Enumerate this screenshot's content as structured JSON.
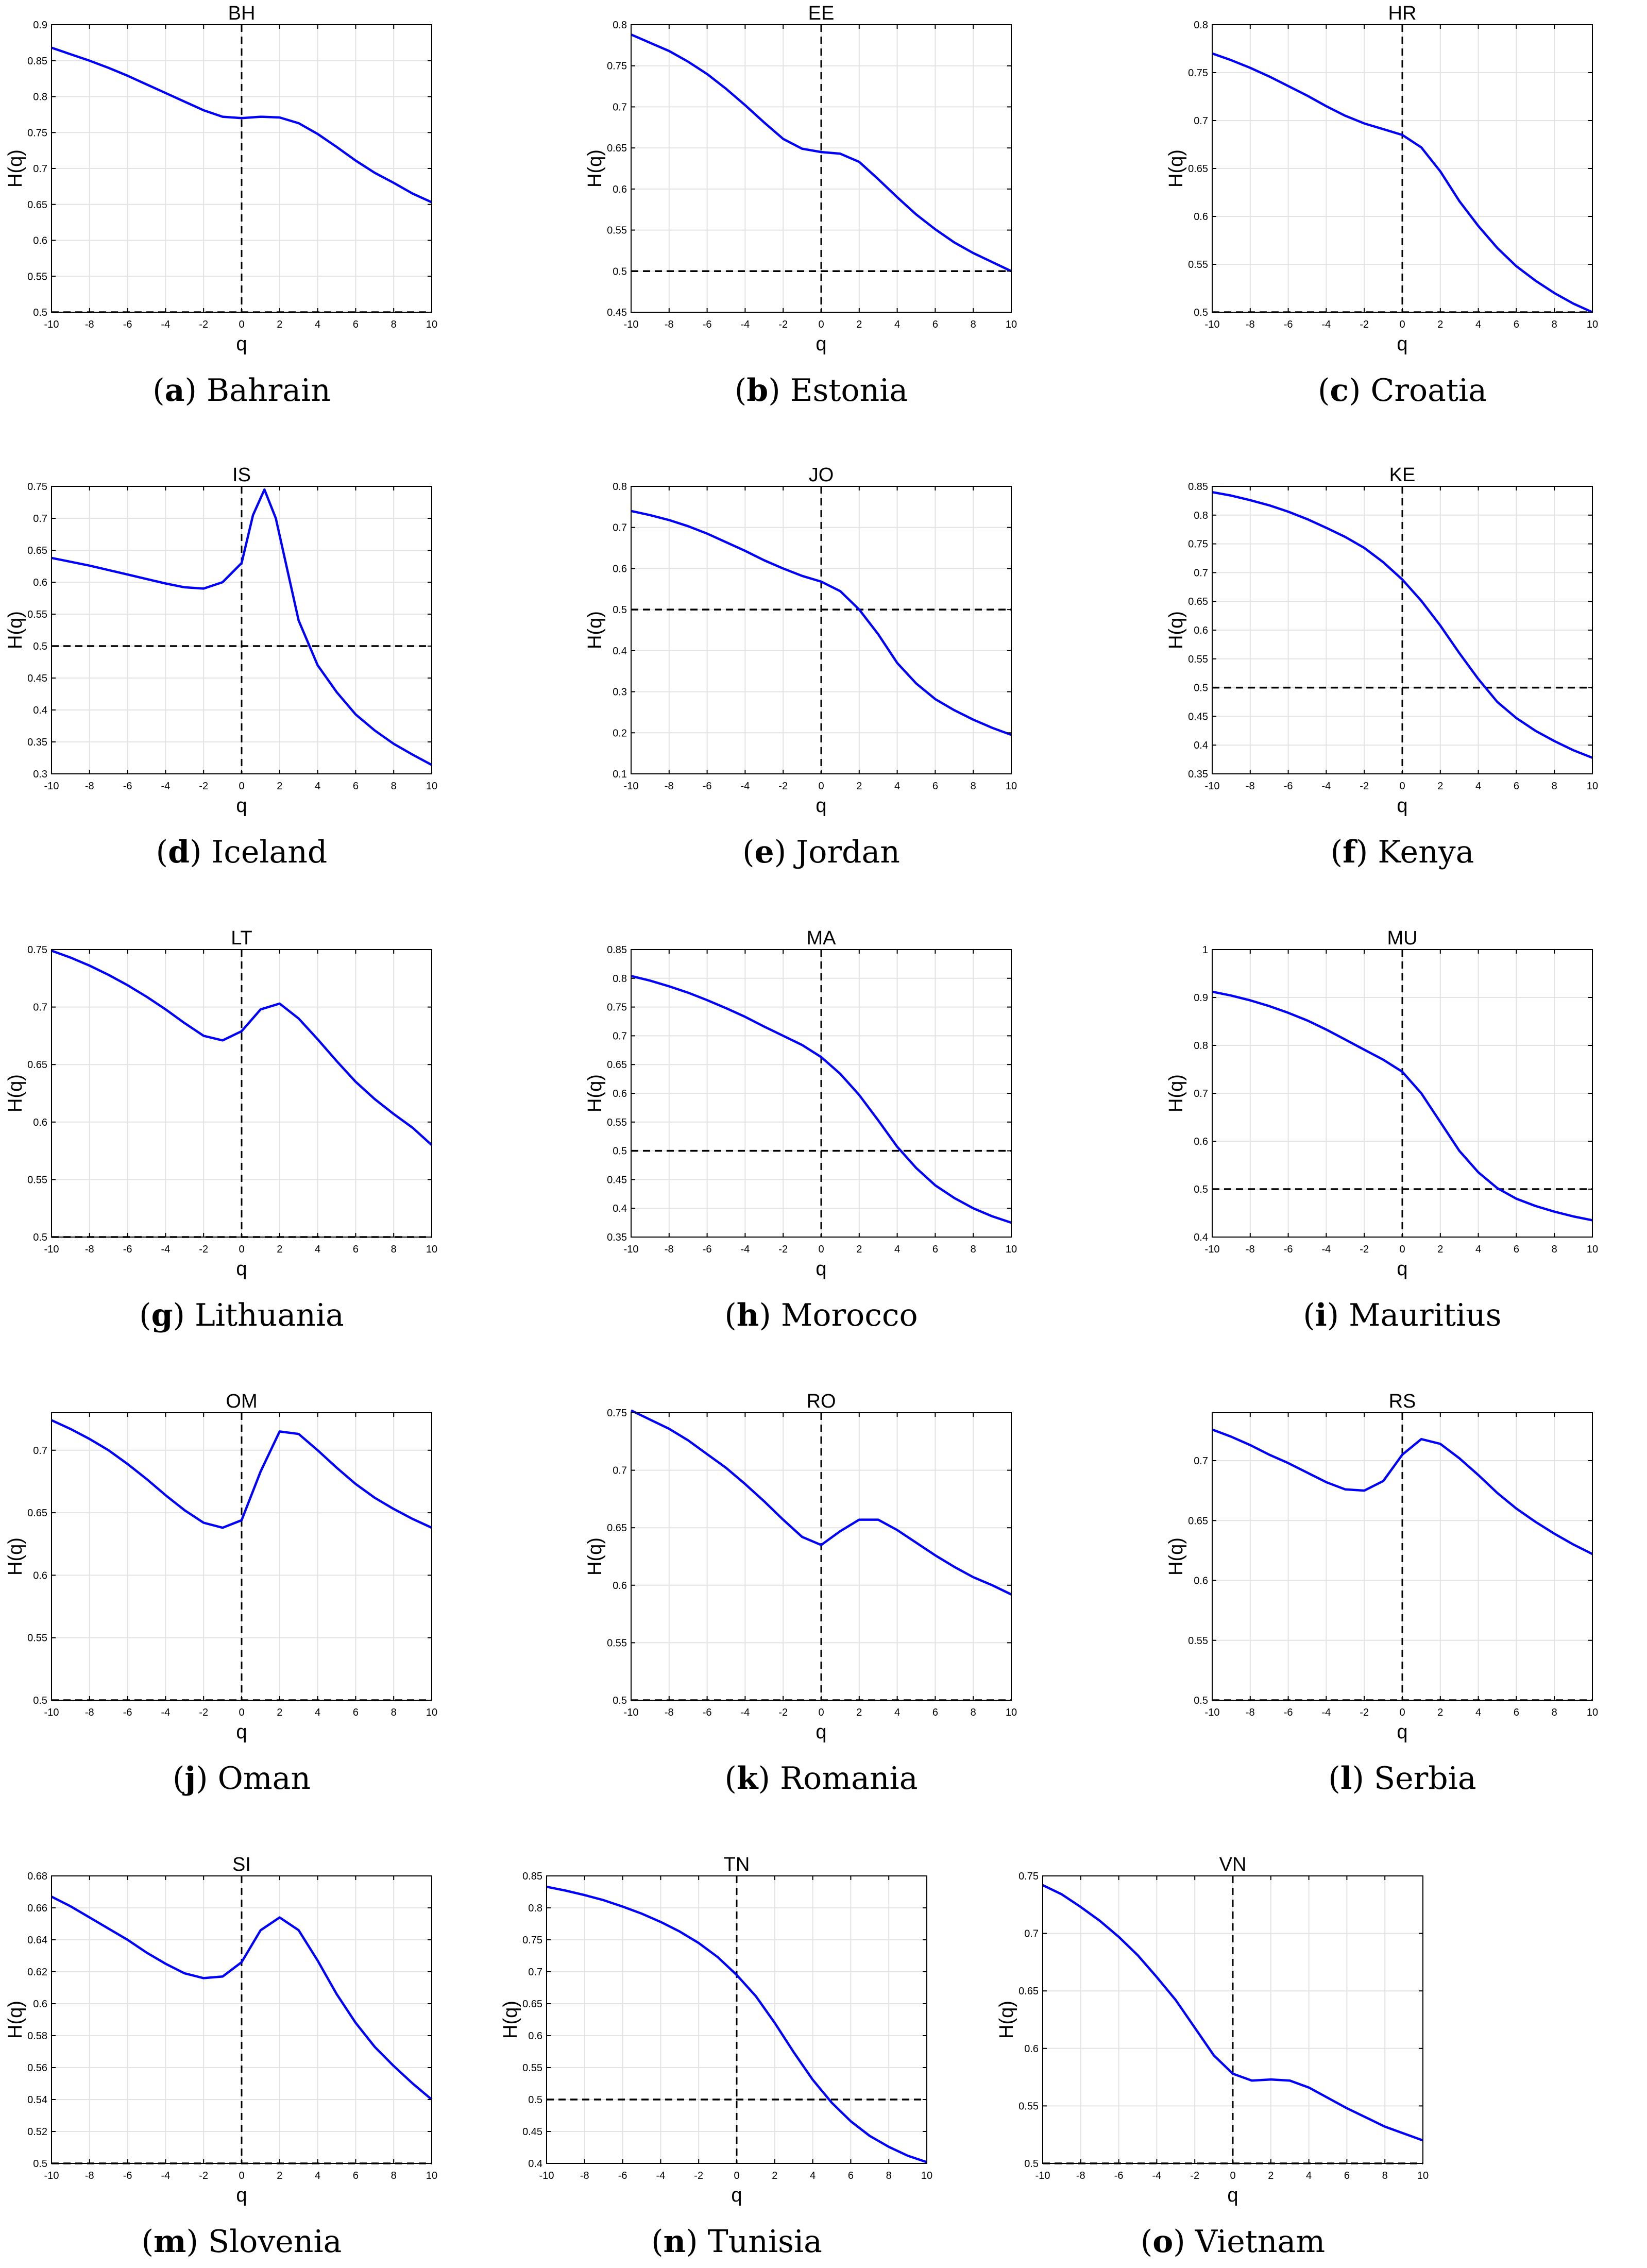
{
  "chart_data": [
    {
      "type": "line",
      "title": "BH",
      "xlabel": "q",
      "ylabel": "H(q)",
      "caption_letter": "a",
      "caption_name": "Bahrain",
      "xlim": [
        -10,
        10
      ],
      "ylim": [
        0.5,
        0.9
      ],
      "xticks": [
        -10,
        -8,
        -6,
        -4,
        -2,
        0,
        2,
        4,
        6,
        8,
        10
      ],
      "yticks": [
        0.5,
        0.55,
        0.6,
        0.65,
        0.7,
        0.75,
        0.8,
        0.85,
        0.9
      ],
      "grid": true,
      "reference_lines": {
        "x": 0,
        "y": 0.5
      },
      "x": [
        -10,
        -9,
        -8,
        -7,
        -6,
        -5,
        -4,
        -3,
        -2,
        -1,
        0,
        1,
        2,
        3,
        4,
        5,
        6,
        7,
        8,
        9,
        10
      ],
      "y": [
        0.868,
        0.859,
        0.85,
        0.84,
        0.829,
        0.817,
        0.805,
        0.793,
        0.781,
        0.772,
        0.77,
        0.772,
        0.771,
        0.763,
        0.748,
        0.73,
        0.711,
        0.694,
        0.68,
        0.665,
        0.653
      ]
    },
    {
      "type": "line",
      "title": "EE",
      "xlabel": "q",
      "ylabel": "H(q)",
      "caption_letter": "b",
      "caption_name": "Estonia",
      "xlim": [
        -10,
        10
      ],
      "ylim": [
        0.45,
        0.8
      ],
      "xticks": [
        -10,
        -8,
        -6,
        -4,
        -2,
        0,
        2,
        4,
        6,
        8,
        10
      ],
      "yticks": [
        0.45,
        0.5,
        0.55,
        0.6,
        0.65,
        0.7,
        0.75,
        0.8
      ],
      "grid": true,
      "reference_lines": {
        "x": 0,
        "y": 0.5
      },
      "x": [
        -10,
        -9,
        -8,
        -7,
        -6,
        -5,
        -4,
        -3,
        -2,
        -1,
        0,
        1,
        2,
        3,
        4,
        5,
        6,
        7,
        8,
        9,
        10
      ],
      "y": [
        0.788,
        0.778,
        0.768,
        0.755,
        0.74,
        0.722,
        0.702,
        0.681,
        0.661,
        0.649,
        0.645,
        0.643,
        0.633,
        0.612,
        0.59,
        0.569,
        0.551,
        0.535,
        0.522,
        0.511,
        0.5
      ]
    },
    {
      "type": "line",
      "title": "HR",
      "xlabel": "q",
      "ylabel": "H(q)",
      "caption_letter": "c",
      "caption_name": "Croatia",
      "xlim": [
        -10,
        10
      ],
      "ylim": [
        0.5,
        0.8
      ],
      "xticks": [
        -10,
        -8,
        -6,
        -4,
        -2,
        0,
        2,
        4,
        6,
        8,
        10
      ],
      "yticks": [
        0.5,
        0.55,
        0.6,
        0.65,
        0.7,
        0.75,
        0.8
      ],
      "grid": true,
      "reference_lines": {
        "x": 0,
        "y": 0.5
      },
      "x": [
        -10,
        -9,
        -8,
        -7,
        -6,
        -5,
        -4,
        -3,
        -2,
        -1,
        0,
        1,
        2,
        3,
        4,
        5,
        6,
        7,
        8,
        9,
        10
      ],
      "y": [
        0.77,
        0.763,
        0.755,
        0.746,
        0.736,
        0.726,
        0.715,
        0.705,
        0.697,
        0.691,
        0.685,
        0.672,
        0.647,
        0.616,
        0.59,
        0.567,
        0.548,
        0.533,
        0.52,
        0.509,
        0.5
      ]
    },
    {
      "type": "line",
      "title": "IS",
      "xlabel": "q",
      "ylabel": "H(q)",
      "caption_letter": "d",
      "caption_name": "Iceland",
      "xlim": [
        -10,
        10
      ],
      "ylim": [
        0.3,
        0.75
      ],
      "xticks": [
        -10,
        -8,
        -6,
        -4,
        -2,
        0,
        2,
        4,
        6,
        8,
        10
      ],
      "yticks": [
        0.3,
        0.35,
        0.4,
        0.45,
        0.5,
        0.55,
        0.6,
        0.65,
        0.7,
        0.75
      ],
      "grid": true,
      "reference_lines": {
        "x": 0,
        "y": 0.5
      },
      "x": [
        -10,
        -9,
        -8,
        -7,
        -6,
        -5,
        -4,
        -3,
        -2,
        -1,
        0,
        0.6,
        1.2,
        1.8,
        3,
        4,
        5,
        6,
        7,
        8,
        9,
        10
      ],
      "y": [
        0.638,
        0.632,
        0.626,
        0.619,
        0.612,
        0.605,
        0.598,
        0.592,
        0.59,
        0.6,
        0.63,
        0.705,
        0.745,
        0.7,
        0.54,
        0.47,
        0.428,
        0.393,
        0.368,
        0.347,
        0.33,
        0.314
      ]
    },
    {
      "type": "line",
      "title": "JO",
      "xlabel": "q",
      "ylabel": "H(q)",
      "caption_letter": "e",
      "caption_name": "Jordan",
      "xlim": [
        -10,
        10
      ],
      "ylim": [
        0.1,
        0.8
      ],
      "xticks": [
        -10,
        -8,
        -6,
        -4,
        -2,
        0,
        2,
        4,
        6,
        8,
        10
      ],
      "yticks": [
        0.1,
        0.2,
        0.3,
        0.4,
        0.5,
        0.6,
        0.7,
        0.8
      ],
      "grid": true,
      "reference_lines": {
        "x": 0,
        "y": 0.5
      },
      "x": [
        -10,
        -9,
        -8,
        -7,
        -6,
        -5,
        -4,
        -3,
        -2,
        -1,
        0,
        1,
        2,
        3,
        4,
        5,
        6,
        7,
        8,
        9,
        10
      ],
      "y": [
        0.74,
        0.73,
        0.718,
        0.703,
        0.685,
        0.664,
        0.643,
        0.62,
        0.6,
        0.582,
        0.568,
        0.545,
        0.5,
        0.44,
        0.37,
        0.32,
        0.282,
        0.255,
        0.232,
        0.212,
        0.195
      ]
    },
    {
      "type": "line",
      "title": "KE",
      "xlabel": "q",
      "ylabel": "H(q)",
      "caption_letter": "f",
      "caption_name": "Kenya",
      "xlim": [
        -10,
        10
      ],
      "ylim": [
        0.35,
        0.85
      ],
      "xticks": [
        -10,
        -8,
        -6,
        -4,
        -2,
        0,
        2,
        4,
        6,
        8,
        10
      ],
      "yticks": [
        0.35,
        0.4,
        0.45,
        0.5,
        0.55,
        0.6,
        0.65,
        0.7,
        0.75,
        0.8,
        0.85
      ],
      "grid": true,
      "reference_lines": {
        "x": 0,
        "y": 0.5
      },
      "x": [
        -10,
        -9,
        -8,
        -7,
        -6,
        -5,
        -4,
        -3,
        -2,
        -1,
        0,
        1,
        2,
        3,
        4,
        5,
        6,
        7,
        8,
        9,
        10
      ],
      "y": [
        0.84,
        0.834,
        0.826,
        0.817,
        0.806,
        0.793,
        0.778,
        0.762,
        0.743,
        0.718,
        0.688,
        0.651,
        0.608,
        0.56,
        0.515,
        0.475,
        0.447,
        0.425,
        0.407,
        0.391,
        0.378
      ]
    },
    {
      "type": "line",
      "title": "LT",
      "xlabel": "q",
      "ylabel": "H(q)",
      "caption_letter": "g",
      "caption_name": "Lithuania",
      "xlim": [
        -10,
        10
      ],
      "ylim": [
        0.5,
        0.75
      ],
      "xticks": [
        -10,
        -8,
        -6,
        -4,
        -2,
        0,
        2,
        4,
        6,
        8,
        10
      ],
      "yticks": [
        0.5,
        0.55,
        0.6,
        0.65,
        0.7,
        0.75
      ],
      "grid": true,
      "reference_lines": {
        "x": 0,
        "y": 0.5
      },
      "x": [
        -10,
        -9,
        -8,
        -7,
        -6,
        -5,
        -4,
        -3,
        -2,
        -1,
        0,
        1,
        2,
        3,
        4,
        5,
        6,
        7,
        8,
        9,
        10
      ],
      "y": [
        0.749,
        0.743,
        0.736,
        0.728,
        0.719,
        0.709,
        0.698,
        0.686,
        0.675,
        0.671,
        0.679,
        0.698,
        0.703,
        0.69,
        0.672,
        0.653,
        0.635,
        0.62,
        0.607,
        0.595,
        0.58
      ]
    },
    {
      "type": "line",
      "title": "MA",
      "xlabel": "q",
      "ylabel": "H(q)",
      "caption_letter": "h",
      "caption_name": "Morocco",
      "xlim": [
        -10,
        10
      ],
      "ylim": [
        0.35,
        0.85
      ],
      "xticks": [
        -10,
        -8,
        -6,
        -4,
        -2,
        0,
        2,
        4,
        6,
        8,
        10
      ],
      "yticks": [
        0.35,
        0.4,
        0.45,
        0.5,
        0.55,
        0.6,
        0.65,
        0.7,
        0.75,
        0.8,
        0.85
      ],
      "grid": true,
      "reference_lines": {
        "x": 0,
        "y": 0.5
      },
      "x": [
        -10,
        -9,
        -8,
        -7,
        -6,
        -5,
        -4,
        -3,
        -2,
        -1,
        0,
        1,
        2,
        3,
        4,
        5,
        6,
        7,
        8,
        9,
        10
      ],
      "y": [
        0.804,
        0.796,
        0.786,
        0.775,
        0.762,
        0.748,
        0.733,
        0.716,
        0.7,
        0.684,
        0.663,
        0.634,
        0.597,
        0.553,
        0.507,
        0.47,
        0.44,
        0.418,
        0.4,
        0.386,
        0.375
      ]
    },
    {
      "type": "line",
      "title": "MU",
      "xlabel": "q",
      "ylabel": "H(q)",
      "caption_letter": "i",
      "caption_name": "Mauritius",
      "xlim": [
        -10,
        10
      ],
      "ylim": [
        0.4,
        1
      ],
      "xticks": [
        -10,
        -8,
        -6,
        -4,
        -2,
        0,
        2,
        4,
        6,
        8,
        10
      ],
      "yticks": [
        0.4,
        0.5,
        0.6,
        0.7,
        0.8,
        0.9,
        1
      ],
      "grid": true,
      "reference_lines": {
        "x": 0,
        "y": 0.5
      },
      "x": [
        -10,
        -9,
        -8,
        -7,
        -6,
        -5,
        -4,
        -3,
        -2,
        -1,
        0,
        1,
        2,
        3,
        4,
        5,
        6,
        7,
        8,
        9,
        10
      ],
      "y": [
        0.912,
        0.904,
        0.894,
        0.882,
        0.868,
        0.852,
        0.833,
        0.812,
        0.791,
        0.77,
        0.745,
        0.7,
        0.64,
        0.58,
        0.535,
        0.502,
        0.48,
        0.465,
        0.453,
        0.443,
        0.435
      ]
    },
    {
      "type": "line",
      "title": "OM",
      "xlabel": "q",
      "ylabel": "H(q)",
      "caption_letter": "j",
      "caption_name": "Oman",
      "xlim": [
        -10,
        10
      ],
      "ylim": [
        0.5,
        0.73
      ],
      "xticks": [
        -10,
        -8,
        -6,
        -4,
        -2,
        0,
        2,
        4,
        6,
        8,
        10
      ],
      "yticks": [
        0.5,
        0.55,
        0.6,
        0.65,
        0.7
      ],
      "grid": true,
      "reference_lines": {
        "x": 0,
        "y": 0.5
      },
      "x": [
        -10,
        -9,
        -8,
        -7,
        -6,
        -5,
        -4,
        -3,
        -2,
        -1,
        0,
        1,
        2,
        3,
        4,
        5,
        6,
        7,
        8,
        9,
        10
      ],
      "y": [
        0.724,
        0.717,
        0.709,
        0.7,
        0.689,
        0.677,
        0.664,
        0.652,
        0.642,
        0.638,
        0.644,
        0.683,
        0.715,
        0.713,
        0.7,
        0.686,
        0.673,
        0.662,
        0.653,
        0.645,
        0.638
      ]
    },
    {
      "type": "line",
      "title": "RO",
      "xlabel": "q",
      "ylabel": "H(q)",
      "caption_letter": "k",
      "caption_name": "Romania",
      "xlim": [
        -10,
        10
      ],
      "ylim": [
        0.5,
        0.75
      ],
      "xticks": [
        -10,
        -8,
        -6,
        -4,
        -2,
        0,
        2,
        4,
        6,
        8,
        10
      ],
      "yticks": [
        0.5,
        0.55,
        0.6,
        0.65,
        0.7,
        0.75
      ],
      "grid": true,
      "reference_lines": {
        "x": 0,
        "y": 0.5
      },
      "x": [
        -10,
        -9,
        -8,
        -7,
        -6,
        -5,
        -4,
        -3,
        -2,
        -1,
        0,
        1,
        2,
        3,
        4,
        5,
        6,
        7,
        8,
        9,
        10
      ],
      "y": [
        0.752,
        0.744,
        0.736,
        0.726,
        0.714,
        0.702,
        0.688,
        0.673,
        0.657,
        0.642,
        0.635,
        0.647,
        0.657,
        0.657,
        0.648,
        0.637,
        0.626,
        0.616,
        0.607,
        0.6,
        0.592
      ]
    },
    {
      "type": "line",
      "title": "RS",
      "xlabel": "q",
      "ylabel": "H(q)",
      "caption_letter": "l",
      "caption_name": "Serbia",
      "xlim": [
        -10,
        10
      ],
      "ylim": [
        0.5,
        0.74
      ],
      "xticks": [
        -10,
        -8,
        -6,
        -4,
        -2,
        0,
        2,
        4,
        6,
        8,
        10
      ],
      "yticks": [
        0.5,
        0.55,
        0.6,
        0.65,
        0.7
      ],
      "grid": true,
      "reference_lines": {
        "x": 0,
        "y": 0.5
      },
      "x": [
        -10,
        -9,
        -8,
        -7,
        -6,
        -5,
        -4,
        -3,
        -2,
        -1,
        0,
        1,
        2,
        3,
        4,
        5,
        6,
        7,
        8,
        9,
        10
      ],
      "y": [
        0.726,
        0.72,
        0.713,
        0.705,
        0.698,
        0.69,
        0.682,
        0.676,
        0.675,
        0.683,
        0.705,
        0.718,
        0.714,
        0.702,
        0.688,
        0.673,
        0.66,
        0.649,
        0.639,
        0.63,
        0.622
      ]
    },
    {
      "type": "line",
      "title": "SI",
      "xlabel": "q",
      "ylabel": "H(q)",
      "caption_letter": "m",
      "caption_name": "Slovenia",
      "xlim": [
        -10,
        10
      ],
      "ylim": [
        0.5,
        0.68
      ],
      "xticks": [
        -10,
        -8,
        -6,
        -4,
        -2,
        0,
        2,
        4,
        6,
        8,
        10
      ],
      "yticks": [
        0.5,
        0.52,
        0.54,
        0.56,
        0.58,
        0.6,
        0.62,
        0.64,
        0.66,
        0.68
      ],
      "grid": true,
      "reference_lines": {
        "x": 0,
        "y": 0.5
      },
      "x": [
        -10,
        -9,
        -8,
        -7,
        -6,
        -5,
        -4,
        -3,
        -2,
        -1,
        0,
        1,
        2,
        3,
        4,
        5,
        6,
        7,
        8,
        9,
        10
      ],
      "y": [
        0.667,
        0.661,
        0.654,
        0.647,
        0.64,
        0.632,
        0.625,
        0.619,
        0.616,
        0.617,
        0.626,
        0.646,
        0.654,
        0.646,
        0.627,
        0.606,
        0.588,
        0.573,
        0.561,
        0.55,
        0.54
      ]
    },
    {
      "type": "line",
      "title": "TN",
      "xlabel": "q",
      "ylabel": "H(q)",
      "caption_letter": "n",
      "caption_name": "Tunisia",
      "xlim": [
        -10,
        10
      ],
      "ylim": [
        0.4,
        0.85
      ],
      "xticks": [
        -10,
        -8,
        -6,
        -4,
        -2,
        0,
        2,
        4,
        6,
        8,
        10
      ],
      "yticks": [
        0.4,
        0.45,
        0.5,
        0.55,
        0.6,
        0.65,
        0.7,
        0.75,
        0.8,
        0.85
      ],
      "grid": true,
      "reference_lines": {
        "x": 0,
        "y": 0.5
      },
      "x": [
        -10,
        -9,
        -8,
        -7,
        -6,
        -5,
        -4,
        -3,
        -2,
        -1,
        0,
        1,
        2,
        3,
        4,
        5,
        6,
        7,
        8,
        9,
        10
      ],
      "y": [
        0.833,
        0.827,
        0.82,
        0.812,
        0.802,
        0.791,
        0.778,
        0.763,
        0.745,
        0.723,
        0.695,
        0.662,
        0.62,
        0.574,
        0.531,
        0.495,
        0.466,
        0.443,
        0.426,
        0.412,
        0.402
      ]
    },
    {
      "type": "line",
      "title": "VN",
      "xlabel": "q",
      "ylabel": "H(q)",
      "caption_letter": "o",
      "caption_name": "Vietnam",
      "xlim": [
        -10,
        10
      ],
      "ylim": [
        0.5,
        0.75
      ],
      "xticks": [
        -10,
        -8,
        -6,
        -4,
        -2,
        0,
        2,
        4,
        6,
        8,
        10
      ],
      "yticks": [
        0.5,
        0.55,
        0.6,
        0.65,
        0.7,
        0.75
      ],
      "grid": true,
      "reference_lines": {
        "x": 0,
        "y": 0.5
      },
      "x": [
        -10,
        -9,
        -8,
        -7,
        -6,
        -5,
        -4,
        -3,
        -2,
        -1,
        0,
        1,
        2,
        3,
        4,
        5,
        6,
        7,
        8,
        9,
        10
      ],
      "y": [
        0.742,
        0.734,
        0.723,
        0.711,
        0.697,
        0.681,
        0.662,
        0.642,
        0.618,
        0.594,
        0.578,
        0.572,
        0.573,
        0.572,
        0.566,
        0.557,
        0.548,
        0.54,
        0.532,
        0.526,
        0.52
      ]
    }
  ],
  "colors": {
    "line": "#0000ff",
    "reference": "#000000",
    "grid": "#e3e3e3",
    "axes": "#000000"
  }
}
